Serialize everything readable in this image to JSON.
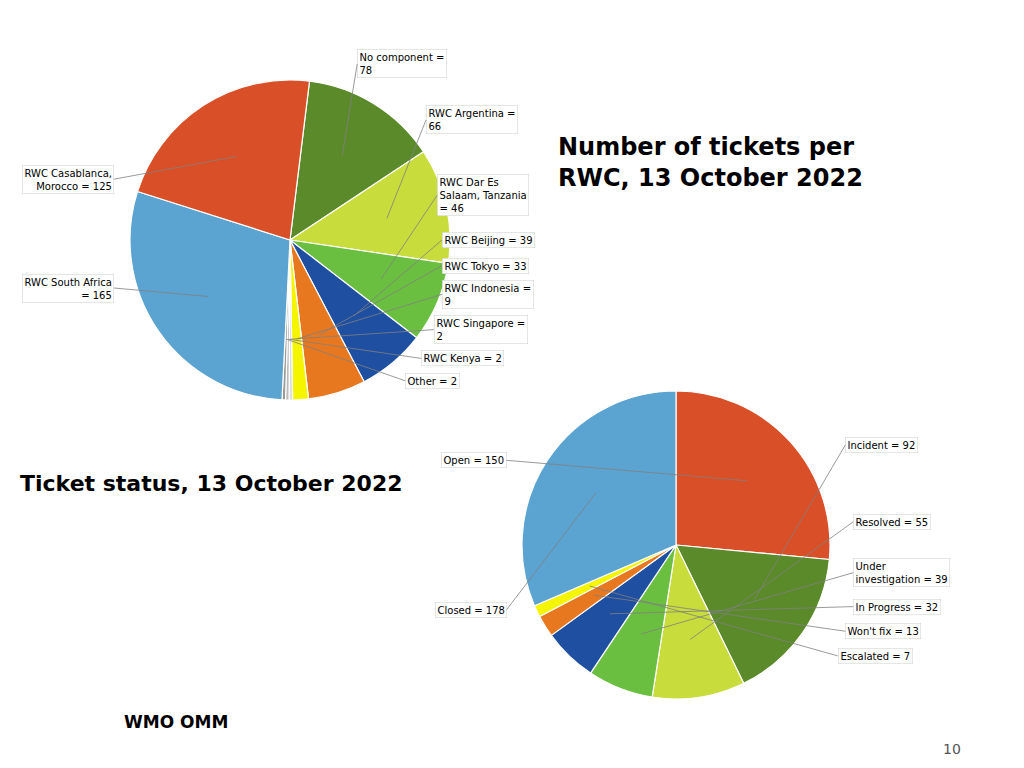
{
  "chart_data": [
    {
      "type": "pie",
      "title": "Number of tickets per\nRWC, 13 October 2022",
      "categories": [
        "No component =\n78",
        "RWC Argentina =\n66",
        "RWC Dar Es\nSalaam, Tanzania\n= 46",
        "RWC Beijing = 39",
        "RWC Tokyo = 33",
        "RWC Indonesia =\n9",
        "RWC Singapore =\n2",
        "RWC Kenya = 2",
        "Other = 2",
        "RWC South Africa\n= 165",
        "RWC Casablanca,\nMorocco = 125"
      ],
      "values": [
        78,
        66,
        46,
        39,
        33,
        9,
        2,
        2,
        2,
        165,
        125
      ],
      "colors": [
        "#5a8a2a",
        "#c8dc3c",
        "#6abf40",
        "#1e4fa0",
        "#e87820",
        "#f5f500",
        "#dddddd",
        "#bbbbbb",
        "#999999",
        "#5ba3d0",
        "#d94f28"
      ]
    },
    {
      "type": "pie",
      "title": "Ticket status, 13 October 2022",
      "categories": [
        "Open = 150",
        "Incident = 92",
        "Resolved = 55",
        "Under\ninvestigation = 39",
        "In Progress = 32",
        "Won't fix = 13",
        "Escalated = 7",
        "Closed = 178"
      ],
      "values": [
        150,
        92,
        55,
        39,
        32,
        13,
        7,
        178
      ],
      "colors": [
        "#d94f28",
        "#5a8a2a",
        "#c8dc3c",
        "#6abf40",
        "#1e4fa0",
        "#e87820",
        "#f5f500",
        "#5ba3d0"
      ]
    }
  ],
  "annotations": [
    "WMO OMM",
    "10"
  ]
}
